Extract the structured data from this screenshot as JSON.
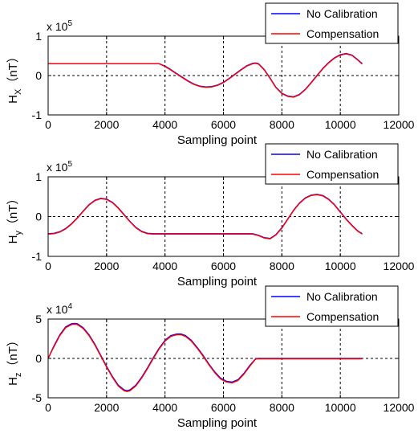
{
  "colors": {
    "no_calibration": "#0000ff",
    "compensation": "#ff0000",
    "axis": "#000000",
    "grid": "#000000",
    "background": "#ffffff"
  },
  "chart_data": [
    {
      "type": "line",
      "title": "",
      "exponent_label": "x 10",
      "exponent_power": "5",
      "xlabel": "Sampling point",
      "ylabel_main": "H",
      "ylabel_sub": "X",
      "ylabel_unit": "（nT）",
      "xlim": [
        0,
        12000
      ],
      "ylim": [
        -1,
        1
      ],
      "x_ticks": [
        "0",
        "2000",
        "4000",
        "6000",
        "8000",
        "10000",
        "12000"
      ],
      "y_ticks": [
        "-1",
        "0",
        "1"
      ],
      "grid": "dashed",
      "legend_position": "top-right",
      "series": [
        {
          "name": "No Calibration",
          "x": [
            0,
            500,
            1000,
            1500,
            2000,
            2500,
            3000,
            3500,
            3800,
            4000,
            4200,
            4500,
            4800,
            5000,
            5200,
            5400,
            5600,
            5800,
            6000,
            6200,
            6400,
            6600,
            6800,
            7000,
            7100,
            7200,
            7400,
            7600,
            7800,
            8000,
            8200,
            8400,
            8600,
            8800,
            9000,
            9200,
            9400,
            9600,
            9800,
            10000,
            10200,
            10400,
            10600,
            10750
          ],
          "y": [
            0.3,
            0.3,
            0.3,
            0.3,
            0.3,
            0.3,
            0.3,
            0.3,
            0.3,
            0.24,
            0.15,
            0.0,
            -0.14,
            -0.22,
            -0.27,
            -0.29,
            -0.28,
            -0.24,
            -0.17,
            -0.07,
            0.04,
            0.15,
            0.25,
            0.31,
            0.32,
            0.3,
            0.15,
            -0.07,
            -0.3,
            -0.45,
            -0.52,
            -0.54,
            -0.48,
            -0.35,
            -0.18,
            0.0,
            0.18,
            0.33,
            0.45,
            0.53,
            0.56,
            0.52,
            0.4,
            0.3
          ]
        },
        {
          "name": "Compensation",
          "x": [
            0,
            500,
            1000,
            1500,
            2000,
            2500,
            3000,
            3500,
            3800,
            4000,
            4200,
            4500,
            4800,
            5000,
            5200,
            5400,
            5600,
            5800,
            6000,
            6200,
            6400,
            6600,
            6800,
            7000,
            7100,
            7200,
            7400,
            7600,
            7800,
            8000,
            8200,
            8400,
            8600,
            8800,
            9000,
            9200,
            9400,
            9600,
            9800,
            10000,
            10200,
            10400,
            10600,
            10750
          ],
          "y": [
            0.3,
            0.3,
            0.3,
            0.3,
            0.3,
            0.3,
            0.3,
            0.3,
            0.3,
            0.23,
            0.14,
            -0.01,
            -0.15,
            -0.23,
            -0.28,
            -0.3,
            -0.29,
            -0.25,
            -0.18,
            -0.08,
            0.03,
            0.14,
            0.24,
            0.3,
            0.31,
            0.29,
            0.14,
            -0.08,
            -0.31,
            -0.46,
            -0.53,
            -0.55,
            -0.49,
            -0.36,
            -0.19,
            -0.01,
            0.17,
            0.32,
            0.44,
            0.52,
            0.55,
            0.51,
            0.39,
            0.29
          ]
        }
      ]
    },
    {
      "type": "line",
      "title": "",
      "exponent_label": "x 10",
      "exponent_power": "5",
      "xlabel": "Sampling point",
      "ylabel_main": "H",
      "ylabel_sub": "y",
      "ylabel_unit": "（nT）",
      "xlim": [
        0,
        12000
      ],
      "ylim": [
        -1,
        1
      ],
      "x_ticks": [
        "0",
        "2000",
        "4000",
        "6000",
        "8000",
        "10000",
        "12000"
      ],
      "y_ticks": [
        "-1",
        "0",
        "1"
      ],
      "grid": "dashed",
      "legend_position": "top-right",
      "series": [
        {
          "name": "No Calibration",
          "x": [
            0,
            200,
            400,
            600,
            800,
            1000,
            1200,
            1400,
            1600,
            1800,
            2000,
            2200,
            2400,
            2600,
            2800,
            3000,
            3200,
            3400,
            3600,
            4000,
            5000,
            6000,
            7000,
            7200,
            7400,
            7600,
            7800,
            8000,
            8200,
            8400,
            8600,
            8800,
            9000,
            9200,
            9400,
            9600,
            9800,
            10000,
            10200,
            10400,
            10600,
            10750
          ],
          "y": [
            -0.43,
            -0.42,
            -0.38,
            -0.3,
            -0.18,
            -0.03,
            0.14,
            0.3,
            0.41,
            0.46,
            0.44,
            0.36,
            0.22,
            0.05,
            -0.12,
            -0.27,
            -0.37,
            -0.42,
            -0.43,
            -0.43,
            -0.43,
            -0.43,
            -0.43,
            -0.47,
            -0.53,
            -0.55,
            -0.45,
            -0.28,
            -0.06,
            0.16,
            0.34,
            0.47,
            0.54,
            0.56,
            0.53,
            0.44,
            0.3,
            0.12,
            -0.06,
            -0.22,
            -0.36,
            -0.43
          ]
        },
        {
          "name": "Compensation",
          "x": [
            0,
            200,
            400,
            600,
            800,
            1000,
            1200,
            1400,
            1600,
            1800,
            2000,
            2200,
            2400,
            2600,
            2800,
            3000,
            3200,
            3400,
            3600,
            4000,
            5000,
            6000,
            7000,
            7200,
            7400,
            7600,
            7800,
            8000,
            8200,
            8400,
            8600,
            8800,
            9000,
            9200,
            9400,
            9600,
            9800,
            10000,
            10200,
            10400,
            10600,
            10750
          ],
          "y": [
            -0.44,
            -0.43,
            -0.39,
            -0.31,
            -0.19,
            -0.04,
            0.13,
            0.29,
            0.4,
            0.45,
            0.43,
            0.35,
            0.21,
            0.04,
            -0.13,
            -0.28,
            -0.38,
            -0.43,
            -0.44,
            -0.44,
            -0.44,
            -0.44,
            -0.44,
            -0.48,
            -0.54,
            -0.56,
            -0.46,
            -0.29,
            -0.07,
            0.15,
            0.33,
            0.46,
            0.53,
            0.55,
            0.52,
            0.43,
            0.29,
            0.11,
            -0.07,
            -0.23,
            -0.37,
            -0.44
          ]
        }
      ]
    },
    {
      "type": "line",
      "title": "",
      "exponent_label": "x 10",
      "exponent_power": "4",
      "xlabel": "Sampling point",
      "ylabel_main": "H",
      "ylabel_sub": "z",
      "ylabel_unit": "（nT）",
      "xlim": [
        0,
        12000
      ],
      "ylim": [
        -5,
        5
      ],
      "x_ticks": [
        "0",
        "2000",
        "4000",
        "6000",
        "8000",
        "10000",
        "12000"
      ],
      "y_ticks": [
        "-5",
        "0",
        "5"
      ],
      "grid": "dashed",
      "legend_position": "top-right",
      "series": [
        {
          "name": "No Calibration",
          "x": [
            0,
            200,
            400,
            600,
            800,
            900,
            1000,
            1200,
            1400,
            1600,
            1800,
            2000,
            2200,
            2400,
            2600,
            2700,
            2800,
            3000,
            3200,
            3400,
            3600,
            3800,
            4000,
            4200,
            4400,
            4550,
            4700,
            4900,
            5100,
            5300,
            5500,
            5700,
            5900,
            6100,
            6300,
            6500,
            6700,
            6900,
            7100,
            7200,
            8000,
            9000,
            10000,
            10750
          ],
          "y": [
            0,
            1.6,
            3.0,
            4.0,
            4.4,
            4.45,
            4.4,
            3.9,
            3.0,
            1.8,
            0.4,
            -1.0,
            -2.3,
            -3.4,
            -4.0,
            -4.1,
            -4.0,
            -3.4,
            -2.4,
            -1.2,
            0.1,
            1.3,
            2.3,
            2.9,
            3.1,
            3.1,
            2.9,
            2.3,
            1.4,
            0.4,
            -0.7,
            -1.7,
            -2.5,
            -2.9,
            -3.0,
            -2.7,
            -1.9,
            -0.9,
            -0.05,
            0,
            0,
            0,
            0,
            0
          ]
        },
        {
          "name": "Compensation",
          "x": [
            0,
            200,
            400,
            600,
            800,
            900,
            1000,
            1200,
            1400,
            1600,
            1800,
            2000,
            2200,
            2400,
            2600,
            2700,
            2800,
            3000,
            3200,
            3400,
            3600,
            3800,
            4000,
            4200,
            4400,
            4550,
            4700,
            4900,
            5100,
            5300,
            5500,
            5700,
            5900,
            6100,
            6300,
            6500,
            6700,
            6900,
            7100,
            7200,
            8000,
            9000,
            10000,
            10750
          ],
          "y": [
            0,
            1.5,
            2.9,
            3.9,
            4.3,
            4.35,
            4.3,
            3.8,
            2.9,
            1.7,
            0.3,
            -1.1,
            -2.4,
            -3.5,
            -4.1,
            -4.2,
            -4.1,
            -3.5,
            -2.5,
            -1.3,
            0.0,
            1.2,
            2.2,
            2.8,
            3.0,
            3.0,
            2.8,
            2.2,
            1.3,
            0.3,
            -0.8,
            -1.8,
            -2.6,
            -3.0,
            -3.1,
            -2.8,
            -2.0,
            -1.0,
            -0.1,
            -0.05,
            -0.05,
            -0.05,
            -0.05,
            -0.05
          ]
        }
      ]
    }
  ]
}
